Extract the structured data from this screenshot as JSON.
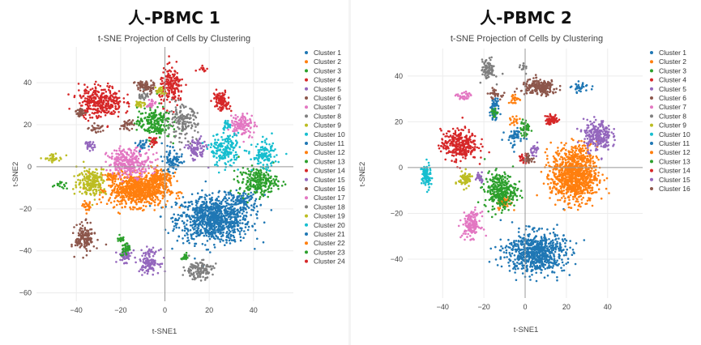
{
  "chart_data": [
    {
      "type": "scatter",
      "title": "人-PBMC 1",
      "subtitle": "t-SNE Projection of Cells by Clustering",
      "xlabel": "t-SNE1",
      "ylabel": "t-SNE2",
      "xlim": [
        -58,
        58
      ],
      "ylim": [
        -64,
        57
      ],
      "xticks": [
        -40,
        -20,
        0,
        20,
        40
      ],
      "yticks": [
        -60,
        -40,
        -20,
        0,
        20,
        40
      ],
      "legend_position": "right",
      "series": [
        {
          "name": "Cluster 1",
          "color": "#1f77b4",
          "clusters": [
            [
              22,
              -25,
              15,
              10,
              1500
            ],
            [
              35,
              -16,
              7,
              4,
              150
            ],
            [
              3,
              5,
              5,
              5,
              60
            ]
          ]
        },
        {
          "name": "Cluster 2",
          "color": "#ff7f0e",
          "clusters": [
            [
              -12,
              -11,
              12,
              7,
              1300
            ],
            [
              -2,
              -5,
              5,
              4,
              200
            ]
          ]
        },
        {
          "name": "Cluster 3",
          "color": "#2ca02c",
          "clusters": [
            [
              42,
              -7,
              8,
              6,
              400
            ],
            [
              -5,
              21,
              7,
              7,
              350
            ],
            [
              -20,
              -34,
              1.5,
              2,
              30
            ],
            [
              -47,
              -9,
              3,
              1.5,
              25
            ]
          ]
        },
        {
          "name": "Cluster 4",
          "color": "#d62728",
          "clusters": [
            [
              -29,
              31,
              9,
              7,
              550
            ],
            [
              3,
              38,
              5,
              8,
              300
            ],
            [
              25,
              32,
              3,
              4,
              100
            ],
            [
              17,
              47,
              2,
              2,
              20
            ]
          ]
        },
        {
          "name": "Cluster 5",
          "color": "#9467bd",
          "clusters": [
            [
              -7,
              -45,
              4,
              5,
              220
            ],
            [
              -18,
              -42,
              3,
              3,
              100
            ],
            [
              14,
              8,
              4,
              5,
              150
            ]
          ]
        },
        {
          "name": "Cluster 6",
          "color": "#8c564b",
          "clusters": [
            [
              -36,
              -34,
              4,
              6,
              250
            ],
            [
              -9,
              38,
              4,
              3,
              120
            ],
            [
              -17,
              20,
              3,
              2,
              60
            ],
            [
              -31,
              18,
              3,
              2,
              40
            ]
          ]
        },
        {
          "name": "Cluster 7",
          "color": "#e377c2",
          "clusters": [
            [
              -16,
              2,
              9,
              6,
              500
            ],
            [
              35,
              20,
              5,
              5,
              200
            ]
          ]
        },
        {
          "name": "Cluster 8",
          "color": "#7f7f7f",
          "clusters": [
            [
              15,
              -49,
              6,
              4,
              220
            ],
            [
              8,
              21,
              6,
              7,
              250
            ]
          ]
        },
        {
          "name": "Cluster 9",
          "color": "#bcbd22",
          "clusters": [
            [
              -33,
              -7,
              6,
              6,
              350
            ],
            [
              -50,
              4,
              4,
              1.5,
              60
            ],
            [
              -2,
              36,
              2,
              2,
              40
            ]
          ]
        },
        {
          "name": "Cluster 10",
          "color": "#17becf",
          "clusters": [
            [
              27,
              8,
              6,
              7,
              300
            ],
            [
              45,
              5,
              5,
              6,
              200
            ]
          ]
        },
        {
          "name": "Cluster 11",
          "color": "#1f77b4",
          "clusters": [
            [
              4,
              2,
              4,
              4,
              80
            ]
          ]
        },
        {
          "name": "Cluster 12",
          "color": "#ff7f0e",
          "clusters": [
            [
              -24,
              -5,
              3,
              2,
              60
            ]
          ]
        },
        {
          "name": "Cluster 13",
          "color": "#2ca02c",
          "clusters": [
            [
              -18,
              -39,
              2,
              3,
              60
            ]
          ]
        },
        {
          "name": "Cluster 14",
          "color": "#d62728",
          "clusters": [
            [
              26,
              30,
              3,
              3,
              80
            ]
          ]
        },
        {
          "name": "Cluster 15",
          "color": "#9467bd",
          "clusters": [
            [
              -34,
              10,
              2,
              2,
              50
            ]
          ]
        },
        {
          "name": "Cluster 16",
          "color": "#8c564b",
          "clusters": [
            [
              -38,
              26,
              2,
              2,
              50
            ]
          ]
        },
        {
          "name": "Cluster 17",
          "color": "#e377c2",
          "clusters": [
            [
              -6,
              30,
              2,
              2,
              40
            ]
          ]
        },
        {
          "name": "Cluster 18",
          "color": "#7f7f7f",
          "clusters": [
            [
              -10,
              34,
              2,
              2,
              40
            ]
          ]
        },
        {
          "name": "Cluster 19",
          "color": "#bcbd22",
          "clusters": [
            [
              -11,
              30,
              2,
              1.5,
              40
            ]
          ]
        },
        {
          "name": "Cluster 20",
          "color": "#17becf",
          "clusters": [
            [
              28,
              20,
              2,
              2,
              40
            ]
          ]
        },
        {
          "name": "Cluster 21",
          "color": "#1f77b4",
          "clusters": [
            [
              -10,
              10,
              2,
              2,
              40
            ]
          ]
        },
        {
          "name": "Cluster 22",
          "color": "#ff7f0e",
          "clusters": [
            [
              -35,
              -19,
              2,
              2,
              40
            ]
          ]
        },
        {
          "name": "Cluster 23",
          "color": "#2ca02c",
          "clusters": [
            [
              9,
              -43,
              1.5,
              1.5,
              30
            ]
          ]
        },
        {
          "name": "Cluster 24",
          "color": "#d62728",
          "clusters": [
            [
              -5,
              12,
              2,
              2,
              40
            ]
          ]
        }
      ]
    },
    {
      "type": "scatter",
      "title": "人-PBMC 2",
      "subtitle": "t-SNE Projection of Cells by Clustering",
      "xlabel": "t-SNE1",
      "ylabel": "t-SNE2",
      "xlim": [
        -57,
        57
      ],
      "ylim": [
        -57,
        52
      ],
      "xticks": [
        -40,
        -20,
        0,
        20,
        40
      ],
      "yticks": [
        -40,
        -20,
        0,
        20,
        40
      ],
      "legend_position": "right",
      "series": [
        {
          "name": "Cluster 1",
          "color": "#1f77b4",
          "clusters": [
            [
              5,
              -37,
              13,
              8,
              1200
            ],
            [
              -5,
              13,
              4,
              4,
              80
            ],
            [
              -15,
              23,
              2,
              2,
              40
            ]
          ]
        },
        {
          "name": "Cluster 2",
          "color": "#ff7f0e",
          "clusters": [
            [
              24,
              -3,
              10,
              11,
              1600
            ],
            [
              -10,
              -15,
              3,
              3,
              80
            ],
            [
              -5,
              30,
              3,
              2,
              40
            ]
          ]
        },
        {
          "name": "Cluster 3",
          "color": "#2ca02c",
          "clusters": [
            [
              -12,
              -10,
              7,
              7,
              500
            ],
            [
              0,
              17,
              2,
              4,
              80
            ]
          ]
        },
        {
          "name": "Cluster 4",
          "color": "#d62728",
          "clusters": [
            [
              -32,
              10,
              8,
              6,
              500
            ],
            [
              13,
              21,
              3,
              2,
              100
            ]
          ]
        },
        {
          "name": "Cluster 5",
          "color": "#9467bd",
          "clusters": [
            [
              35,
              14,
              6,
              6,
              400
            ],
            [
              5,
              8,
              2,
              2,
              40
            ]
          ]
        },
        {
          "name": "Cluster 6",
          "color": "#8c564b",
          "clusters": [
            [
              7,
              35,
              8,
              3,
              350
            ],
            [
              -15,
              32,
              3,
              2,
              50
            ]
          ]
        },
        {
          "name": "Cluster 7",
          "color": "#e377c2",
          "clusters": [
            [
              -26,
              -25,
              4,
              5,
              250
            ],
            [
              -30,
              31,
              3,
              2,
              60
            ]
          ]
        },
        {
          "name": "Cluster 8",
          "color": "#7f7f7f",
          "clusters": [
            [
              -18,
              43,
              3,
              4,
              150
            ],
            [
              0,
              43,
              2,
              2,
              20
            ]
          ]
        },
        {
          "name": "Cluster 9",
          "color": "#bcbd22",
          "clusters": [
            [
              -29,
              -5,
              3,
              3,
              120
            ]
          ]
        },
        {
          "name": "Cluster 10",
          "color": "#17becf",
          "clusters": [
            [
              -48,
              -4,
              2,
              5,
              150
            ]
          ]
        },
        {
          "name": "Cluster 11",
          "color": "#1f77b4",
          "clusters": [
            [
              -15,
              27,
              2,
              3,
              80
            ],
            [
              27,
              35,
              4,
              2,
              50
            ]
          ]
        },
        {
          "name": "Cluster 12",
          "color": "#ff7f0e",
          "clusters": [
            [
              -5,
              20,
              2,
              2,
              30
            ]
          ]
        },
        {
          "name": "Cluster 13",
          "color": "#2ca02c",
          "clusters": [
            [
              -15,
              24,
              1.5,
              1.5,
              30
            ]
          ]
        },
        {
          "name": "Cluster 14",
          "color": "#d62728",
          "clusters": [
            [
              -1,
              4,
              2,
              2,
              40
            ]
          ]
        },
        {
          "name": "Cluster 15",
          "color": "#9467bd",
          "clusters": [
            [
              -22,
              -4,
              2,
              2,
              40
            ]
          ]
        },
        {
          "name": "Cluster 16",
          "color": "#8c564b",
          "clusters": [
            [
              2,
              4,
              2,
              2,
              40
            ]
          ]
        }
      ]
    }
  ]
}
